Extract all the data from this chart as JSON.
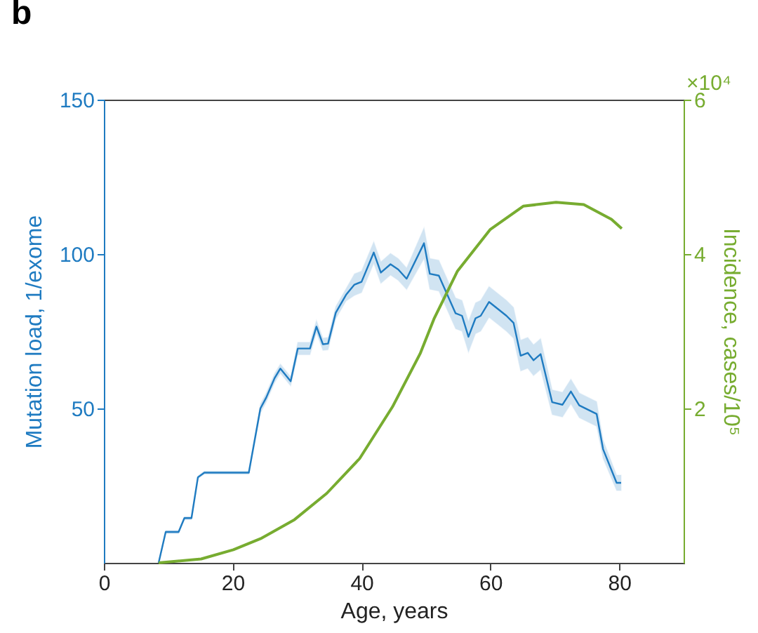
{
  "chart_data": {
    "type": "line",
    "title": "b",
    "xlabel": "Age, years",
    "ylabel": "Mutation load, 1/exome",
    "y2label": "Incidence, cases/10⁵",
    "annotations": [
      "×10⁴"
    ],
    "xlim": [
      0,
      90
    ],
    "xticks": [
      0,
      20,
      40,
      60,
      80
    ],
    "ylim": [
      0,
      150
    ],
    "yticks": [
      50,
      100,
      150
    ],
    "y2lim": [
      0,
      6
    ],
    "y2ticks": [
      2,
      4,
      6
    ],
    "series": [
      {
        "color": "#1f7bc1",
        "x": [
          8.5,
          9.6,
          11.6,
          12.5,
          13.6,
          14.6,
          15.6,
          22.5,
          24.3,
          25.2,
          26.5,
          27.4,
          29,
          30.1,
          32,
          33,
          34,
          34.8,
          36,
          37.6,
          38.9,
          40,
          41.9,
          43,
          44.5,
          45.7,
          47,
          49.7,
          50.6,
          52,
          54.6,
          55.6,
          56.6,
          57.7,
          58.5,
          59.8,
          61,
          62.5,
          63.6,
          64.7,
          65.8,
          66.7,
          67.8,
          69.6,
          71.2,
          72.5,
          73.8,
          76.5,
          77.5,
          79.6,
          80.3
        ],
        "values": [
          0,
          10,
          10,
          14.5,
          14.5,
          27.7,
          29.2,
          29.2,
          50,
          53.5,
          59.8,
          62.9,
          58.8,
          69.4,
          69.4,
          76.5,
          70.8,
          71,
          81,
          86.8,
          90.1,
          91,
          100.5,
          94,
          96.7,
          95,
          92,
          103.5,
          93.6,
          93,
          80.8,
          80,
          73.2,
          79.2,
          80,
          84.5,
          82.5,
          80,
          77.7,
          67.1,
          68,
          65.6,
          67.6,
          52,
          51.2,
          55.5,
          51,
          48.2,
          36.8,
          25.9,
          25.9
        ],
        "lower": [
          0,
          9.5,
          9.5,
          14,
          14,
          27.2,
          28.7,
          28.7,
          48.5,
          52,
          58.3,
          61.4,
          57.3,
          67.4,
          67.4,
          74.5,
          68.8,
          69,
          79,
          84.8,
          86.6,
          87.5,
          97,
          90.5,
          93.2,
          91.5,
          88.5,
          98.5,
          88.6,
          88,
          75.8,
          75,
          68.2,
          74.2,
          75,
          79.5,
          77.5,
          75,
          72.7,
          62.1,
          63,
          60.6,
          62.6,
          48,
          47.2,
          51.5,
          47,
          44.2,
          33.8,
          23.4,
          23.4
        ],
        "upper": [
          0,
          10.5,
          10.5,
          15,
          15,
          28.2,
          29.7,
          29.7,
          51.5,
          55,
          61.3,
          64.4,
          60.3,
          71.4,
          71.4,
          78.5,
          72.8,
          73,
          83,
          88.8,
          93.6,
          94.5,
          104,
          97.5,
          100.2,
          98.5,
          95.5,
          108.5,
          98.6,
          98,
          85.8,
          85,
          78.2,
          84.2,
          85,
          89.5,
          87.5,
          85,
          82.7,
          72.1,
          73,
          70.6,
          72.6,
          56,
          55.2,
          59.5,
          55,
          52.2,
          39.8,
          28.4,
          28.4
        ]
      },
      {
        "color": "#77ac30",
        "axis": "y2",
        "x": [
          8.5,
          15.1,
          20.1,
          24.5,
          29.6,
          34.6,
          39.7,
          44.8,
          49.1,
          51.3,
          54.9,
          60,
          65.1,
          70.2,
          74.5,
          78.8,
          80.4
        ],
        "values": [
          0,
          0.05,
          0.17,
          0.32,
          0.56,
          0.9,
          1.35,
          2.02,
          2.71,
          3.17,
          3.78,
          4.32,
          4.62,
          4.67,
          4.64,
          4.45,
          4.33
        ]
      }
    ]
  }
}
